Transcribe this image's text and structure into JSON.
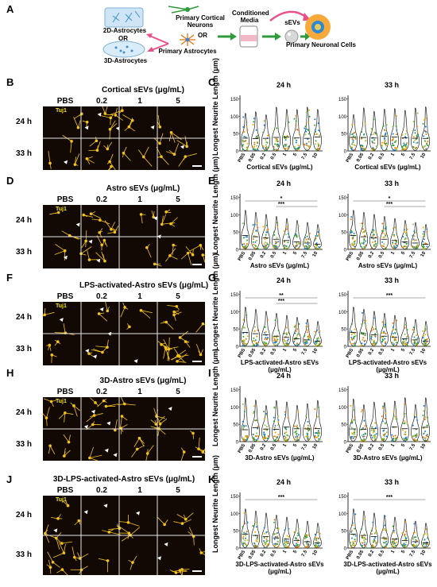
{
  "panel_labels": [
    "A",
    "B",
    "C",
    "D",
    "E",
    "F",
    "G",
    "H",
    "I",
    "J",
    "K"
  ],
  "schematic": {
    "astro2d": "2D-Astrocytes",
    "or1": "OR",
    "astro3d": "3D-Astrocytes",
    "neurons": "Primary Cortical Neurons",
    "or2": "OR",
    "primary_astro": "Primary Astrocytes",
    "media": "Conditioned Media",
    "sevs": "sEVs",
    "neuronal": "Primary Neuronal Cells"
  },
  "micro_rows": [
    {
      "title": "Cortical sEVs (μg/mL)"
    },
    {
      "title": "Astro sEVs (μg/mL)"
    },
    {
      "title": "LPS-activated-Astro sEVs (μg/mL)"
    },
    {
      "title": "3D-Astro sEVs (μg/mL)"
    },
    {
      "title": "3D-LPS-activated-Astro sEVs (μg/mL)"
    }
  ],
  "micro_common": {
    "columns": [
      "PBS",
      "0.2",
      "1",
      "5"
    ],
    "times": [
      "24 h",
      "33 h"
    ],
    "stain": "Tuj1"
  },
  "plot_common": {
    "ylabel": "Longest Neurite Length (μm)",
    "yticks": [
      "0",
      "50",
      "100",
      "150"
    ],
    "categories": [
      "PBS",
      "0.05",
      "0.2",
      "0.5",
      "1",
      "5",
      "7.5",
      "10"
    ],
    "time_titles": [
      "24 h",
      "33 h"
    ]
  },
  "plot_rows": [
    {
      "xtitle": "Cortical sEVs (μg/mL)",
      "sig_24": [],
      "sig_33": []
    },
    {
      "xtitle": "Astro sEVs (μg/mL)",
      "sig_24": [
        "*",
        "***"
      ],
      "sig_33": [
        "*",
        "***"
      ]
    },
    {
      "xtitle": "LPS-activated-Astro sEVs (μg/mL)",
      "sig_24": [
        "**",
        "***"
      ],
      "sig_33": [
        "***"
      ]
    },
    {
      "xtitle": "3D-Astro sEVs (μg/mL)",
      "sig_24": [],
      "sig_33": []
    },
    {
      "xtitle": "3D-LPS-activated-Astro sEVs (μg/mL)",
      "sig_24": [
        "***"
      ],
      "sig_33": [
        "***"
      ]
    }
  ],
  "colors": {
    "neurite": "#f4c21a",
    "arrow": "#ffffff",
    "violin_fill": "#ffffff",
    "dots": [
      "#1a7fd6",
      "#2ca02c",
      "#f2a900",
      "#e8740c",
      "#8bc34a"
    ],
    "arrow_green": "#2e9b3a",
    "arrow_pink": "#e8508c"
  }
}
